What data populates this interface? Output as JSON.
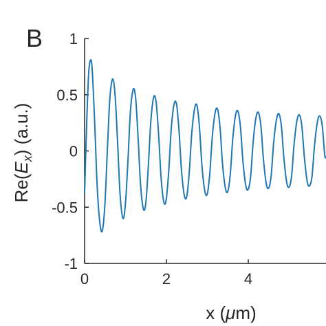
{
  "panel_label": "B",
  "colors": {
    "line": "#1f77b4",
    "axis": "#262626",
    "background": "#ffffff"
  },
  "chart_data": {
    "type": "line",
    "title": "",
    "xlabel": {
      "prefix": "x (",
      "greek": "μ",
      "suffix": "m)"
    },
    "ylabel": {
      "prefix": "Re(",
      "var": "E",
      "sub": "x",
      "suffix": ") (a.u.)"
    },
    "xlim": [
      0,
      5.9
    ],
    "ylim": [
      -1,
      1
    ],
    "xticks": [
      0,
      2,
      4
    ],
    "xtick_labels": [
      "0",
      "2",
      "4"
    ],
    "yticks": [
      1,
      0.5,
      0,
      -0.5,
      -1
    ],
    "ytick_labels": [
      "1",
      "0.5",
      "0",
      "-0.5",
      "-1"
    ],
    "grid": false,
    "series": [
      {
        "x": [
          0,
          0.05,
          0.1,
          0.15,
          0.19,
          0.25,
          0.31,
          0.38,
          0.44,
          0.5,
          0.56,
          0.62,
          0.69,
          0.75,
          0.81,
          0.87,
          0.94,
          1.0,
          1.06,
          1.12,
          1.19,
          1.25,
          1.31,
          1.37,
          1.44,
          1.5,
          1.56,
          1.62,
          1.69,
          1.75,
          1.81,
          1.87,
          1.94,
          2.0,
          2.06,
          2.12,
          2.19,
          2.25,
          2.31,
          2.37,
          2.44,
          2.5,
          2.56,
          2.62,
          2.69,
          2.75,
          2.81,
          2.87,
          2.94,
          3.0,
          3.06,
          3.12,
          3.19,
          3.25,
          3.31,
          3.37,
          3.44,
          3.5,
          3.56,
          3.62,
          3.69,
          3.75,
          3.81,
          3.87,
          3.94,
          4.0,
          4.06,
          4.12,
          4.19,
          4.25,
          4.31,
          4.37,
          4.44,
          4.5,
          4.56,
          4.62,
          4.69,
          4.75,
          4.81,
          4.87,
          4.94,
          5.0,
          5.06,
          5.12,
          5.19,
          5.25,
          5.31,
          5.37,
          5.44,
          5.5,
          5.56,
          5.62,
          5.69,
          5.75,
          5.81,
          5.87,
          5.9
        ],
        "y": [
          -0.38,
          0.23,
          0.69,
          0.81,
          0.7,
          0.22,
          -0.33,
          -0.66,
          -0.7,
          -0.45,
          0.04,
          0.48,
          0.64,
          0.47,
          0.05,
          -0.4,
          -0.6,
          -0.46,
          -0.08,
          0.35,
          0.55,
          0.46,
          0.1,
          -0.31,
          -0.52,
          -0.45,
          -0.12,
          0.27,
          0.48,
          0.43,
          0.14,
          -0.24,
          -0.46,
          -0.42,
          -0.16,
          0.21,
          0.42,
          0.41,
          0.17,
          -0.18,
          -0.4,
          -0.4,
          -0.18,
          0.16,
          0.38,
          0.4,
          0.2,
          -0.14,
          -0.36,
          -0.38,
          -0.2,
          0.12,
          0.34,
          0.37,
          0.21,
          -0.11,
          -0.33,
          -0.36,
          -0.21,
          0.1,
          0.32,
          0.35,
          0.21,
          -0.09,
          -0.31,
          -0.34,
          -0.22,
          0.08,
          0.3,
          0.34,
          0.22,
          -0.07,
          -0.29,
          -0.33,
          -0.22,
          0.07,
          0.28,
          0.33,
          0.22,
          -0.06,
          -0.28,
          -0.32,
          -0.22,
          0.06,
          0.27,
          0.32,
          0.22,
          -0.05,
          -0.27,
          -0.31,
          -0.22,
          0.05,
          0.26,
          0.31,
          0.22,
          -0.04,
          -0.05
        ]
      }
    ]
  }
}
